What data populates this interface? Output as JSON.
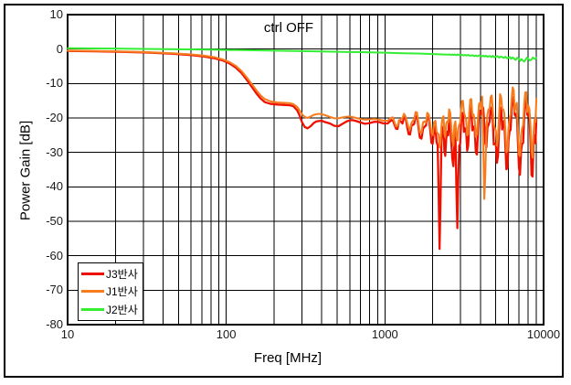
{
  "window": {
    "background": "#ffffff",
    "border_color": "#000000"
  },
  "chart_data": {
    "type": "line",
    "title": "ctrl OFF",
    "xlabel": "Freq [MHz]",
    "ylabel": "Power Gain [dB]",
    "x_scale": "log",
    "xlim": [
      10,
      10000
    ],
    "ylim": [
      -80,
      10
    ],
    "x_ticks": [
      10,
      100,
      1000,
      10000
    ],
    "y_ticks": [
      10,
      0,
      -10,
      -20,
      -30,
      -40,
      -50,
      -60,
      -70,
      -80
    ],
    "grid": "black major+minor vertical (log), major horizontal",
    "legend_position": "bottom-left-inside",
    "grid_color": "#000000",
    "series": [
      {
        "name": "J3반사",
        "color": "#ee1100",
        "width": 2.3,
        "jitter": {
          "start": 1080,
          "seed": 7,
          "amp": [
            [
              1080,
              1.2
            ],
            [
              2000,
              2.6
            ],
            [
              3000,
              3.4
            ],
            [
              5000,
              4.4
            ],
            [
              9000,
              5.2
            ]
          ]
        },
        "points": [
          [
            10,
            -0.55
          ],
          [
            15,
            -0.65
          ],
          [
            22,
            -0.8
          ],
          [
            32,
            -1.0
          ],
          [
            45,
            -1.35
          ],
          [
            60,
            -1.75
          ],
          [
            72,
            -2.15
          ],
          [
            85,
            -2.7
          ],
          [
            95,
            -3.3
          ],
          [
            105,
            -4.2
          ],
          [
            115,
            -5.4
          ],
          [
            125,
            -7.0
          ],
          [
            135,
            -9.0
          ],
          [
            145,
            -11.0
          ],
          [
            155,
            -12.9
          ],
          [
            165,
            -14.4
          ],
          [
            175,
            -15.4
          ],
          [
            190,
            -15.9
          ],
          [
            210,
            -16.1
          ],
          [
            230,
            -16.2
          ],
          [
            250,
            -16.3
          ],
          [
            265,
            -16.6
          ],
          [
            280,
            -17.8
          ],
          [
            290,
            -19.3
          ],
          [
            300,
            -21.2
          ],
          [
            312,
            -22.6
          ],
          [
            325,
            -23.0
          ],
          [
            340,
            -22.4
          ],
          [
            355,
            -21.5
          ],
          [
            370,
            -21.0
          ],
          [
            385,
            -20.9
          ],
          [
            400,
            -20.8
          ],
          [
            420,
            -21.2
          ],
          [
            450,
            -21.6
          ],
          [
            480,
            -22.3
          ],
          [
            510,
            -22.4
          ],
          [
            545,
            -21.6
          ],
          [
            580,
            -20.9
          ],
          [
            620,
            -20.6
          ],
          [
            660,
            -20.9
          ],
          [
            700,
            -21.3
          ],
          [
            750,
            -21.7
          ],
          [
            800,
            -21.5
          ],
          [
            860,
            -21.1
          ],
          [
            920,
            -21.2
          ],
          [
            980,
            -21.6
          ],
          [
            1040,
            -21.6
          ],
          [
            1100,
            -20.6
          ],
          [
            1150,
            -22.0
          ],
          [
            1200,
            -23.2
          ],
          [
            1260,
            -21.0
          ],
          [
            1320,
            -19.8
          ],
          [
            1380,
            -22.5
          ],
          [
            1440,
            -24.8
          ],
          [
            1500,
            -22.0
          ],
          [
            1560,
            -19.5
          ],
          [
            1620,
            -22.0
          ],
          [
            1700,
            -26.0
          ],
          [
            1780,
            -22.5
          ],
          [
            1850,
            -19.8
          ],
          [
            1930,
            -23.5
          ],
          [
            2000,
            -27.5
          ],
          [
            2080,
            -22.5
          ],
          [
            2150,
            -28.0
          ],
          [
            2210,
            -58.0
          ],
          [
            2270,
            -27.0
          ],
          [
            2340,
            -22.5
          ],
          [
            2400,
            -31.0
          ],
          [
            2470,
            -24.0
          ],
          [
            2540,
            -20.5
          ],
          [
            2620,
            -27.0
          ],
          [
            2700,
            -34.0
          ],
          [
            2780,
            -24.0
          ],
          [
            2860,
            -52.0
          ],
          [
            2940,
            -28.0
          ],
          [
            3020,
            -21.5
          ],
          [
            3100,
            -18.5
          ],
          [
            3200,
            -23.0
          ],
          [
            3300,
            -29.5
          ],
          [
            3400,
            -21.0
          ],
          [
            3500,
            -17.5
          ],
          [
            3620,
            -22.5
          ],
          [
            3740,
            -30.0
          ],
          [
            3860,
            -24.0
          ],
          [
            3980,
            -18.5
          ],
          [
            4100,
            -16.5
          ],
          [
            4230,
            -21.5
          ],
          [
            4360,
            -28.5
          ],
          [
            4500,
            -22.0
          ],
          [
            4640,
            -17.0
          ],
          [
            4780,
            -20.5
          ],
          [
            4930,
            -27.5
          ],
          [
            5080,
            -33.0
          ],
          [
            5240,
            -23.5
          ],
          [
            5400,
            -17.0
          ],
          [
            5570,
            -21.0
          ],
          [
            5740,
            -28.0
          ],
          [
            5920,
            -34.5
          ],
          [
            6100,
            -24.0
          ],
          [
            6290,
            -17.5
          ],
          [
            6480,
            -14.5
          ],
          [
            6680,
            -19.5
          ],
          [
            6890,
            -27.0
          ],
          [
            7100,
            -36.5
          ],
          [
            7320,
            -27.5
          ],
          [
            7550,
            -19.5
          ],
          [
            7780,
            -14.8
          ],
          [
            8020,
            -19.5
          ],
          [
            8270,
            -26.5
          ],
          [
            8520,
            -37.0
          ],
          [
            8780,
            -25.0
          ],
          [
            9000,
            -20.5
          ]
        ]
      },
      {
        "name": "J1반사",
        "color": "#f57d1f",
        "width": 2.1,
        "jitter": {
          "start": 1080,
          "seed": 13,
          "amp": [
            [
              1080,
              1.0
            ],
            [
              2000,
              2.2
            ],
            [
              3000,
              3.0
            ],
            [
              5000,
              3.8
            ],
            [
              9000,
              4.6
            ]
          ]
        },
        "points": [
          [
            10,
            -0.45
          ],
          [
            15,
            -0.55
          ],
          [
            22,
            -0.7
          ],
          [
            32,
            -0.9
          ],
          [
            45,
            -1.2
          ],
          [
            60,
            -1.55
          ],
          [
            72,
            -1.9
          ],
          [
            85,
            -2.4
          ],
          [
            95,
            -3.0
          ],
          [
            105,
            -3.8
          ],
          [
            115,
            -4.9
          ],
          [
            125,
            -6.4
          ],
          [
            135,
            -8.3
          ],
          [
            145,
            -10.2
          ],
          [
            155,
            -12.0
          ],
          [
            165,
            -13.5
          ],
          [
            175,
            -14.5
          ],
          [
            190,
            -15.2
          ],
          [
            210,
            -15.5
          ],
          [
            230,
            -15.6
          ],
          [
            250,
            -15.7
          ],
          [
            265,
            -16.0
          ],
          [
            280,
            -16.8
          ],
          [
            290,
            -17.8
          ],
          [
            300,
            -18.9
          ],
          [
            312,
            -19.7
          ],
          [
            325,
            -20.0
          ],
          [
            340,
            -19.6
          ],
          [
            355,
            -19.1
          ],
          [
            370,
            -18.9
          ],
          [
            385,
            -18.8
          ],
          [
            400,
            -18.9
          ],
          [
            420,
            -19.2
          ],
          [
            450,
            -19.7
          ],
          [
            480,
            -20.1
          ],
          [
            510,
            -20.1
          ],
          [
            545,
            -19.8
          ],
          [
            580,
            -19.6
          ],
          [
            620,
            -19.7
          ],
          [
            660,
            -20.0
          ],
          [
            700,
            -20.3
          ],
          [
            750,
            -20.5
          ],
          [
            800,
            -20.4
          ],
          [
            860,
            -20.3
          ],
          [
            920,
            -20.5
          ],
          [
            980,
            -20.8
          ],
          [
            1040,
            -20.8
          ],
          [
            1100,
            -19.9
          ],
          [
            1150,
            -21.3
          ],
          [
            1200,
            -22.3
          ],
          [
            1260,
            -20.3
          ],
          [
            1320,
            -18.8
          ],
          [
            1380,
            -21.3
          ],
          [
            1440,
            -23.3
          ],
          [
            1500,
            -20.8
          ],
          [
            1560,
            -18.3
          ],
          [
            1620,
            -20.8
          ],
          [
            1700,
            -24.3
          ],
          [
            1780,
            -21.0
          ],
          [
            1850,
            -18.5
          ],
          [
            1930,
            -21.8
          ],
          [
            2000,
            -25.0
          ],
          [
            2080,
            -20.8
          ],
          [
            2150,
            -24.5
          ],
          [
            2210,
            -28.5
          ],
          [
            2270,
            -22.5
          ],
          [
            2340,
            -19.5
          ],
          [
            2400,
            -25.5
          ],
          [
            2470,
            -21.0
          ],
          [
            2540,
            -17.5
          ],
          [
            2620,
            -22.5
          ],
          [
            2700,
            -28.0
          ],
          [
            2780,
            -21.0
          ],
          [
            2860,
            -26.5
          ],
          [
            2940,
            -22.0
          ],
          [
            3020,
            -17.5
          ],
          [
            3100,
            -15.0
          ],
          [
            3200,
            -19.5
          ],
          [
            3300,
            -25.0
          ],
          [
            3400,
            -18.5
          ],
          [
            3500,
            -14.5
          ],
          [
            3620,
            -19.0
          ],
          [
            3740,
            -25.5
          ],
          [
            3860,
            -20.0
          ],
          [
            3980,
            -15.5
          ],
          [
            4100,
            -13.8
          ],
          [
            4230,
            -43.5
          ],
          [
            4360,
            -23.5
          ],
          [
            4500,
            -17.5
          ],
          [
            4640,
            -14.0
          ],
          [
            4780,
            -17.5
          ],
          [
            4930,
            -23.0
          ],
          [
            5080,
            -28.0
          ],
          [
            5240,
            -19.5
          ],
          [
            5400,
            -14.0
          ],
          [
            5570,
            -17.5
          ],
          [
            5740,
            -23.5
          ],
          [
            5920,
            -29.5
          ],
          [
            6100,
            -20.0
          ],
          [
            6290,
            -14.5
          ],
          [
            6480,
            -12.0
          ],
          [
            6680,
            -16.5
          ],
          [
            6890,
            -23.0
          ],
          [
            7100,
            -31.0
          ],
          [
            7320,
            -23.0
          ],
          [
            7550,
            -16.0
          ],
          [
            7780,
            -12.5
          ],
          [
            8020,
            -16.5
          ],
          [
            8270,
            -22.5
          ],
          [
            8520,
            -31.5
          ],
          [
            8780,
            -20.5
          ],
          [
            9000,
            -14.5
          ]
        ]
      },
      {
        "name": "J2반사",
        "color": "#33ee33",
        "width": 2.0,
        "jitter": {
          "start": 2500,
          "seed": 21,
          "amp": [
            [
              2500,
              0.1
            ],
            [
              5000,
              0.25
            ],
            [
              7000,
              0.45
            ],
            [
              9000,
              0.5
            ]
          ]
        },
        "points": [
          [
            10,
            0.25
          ],
          [
            20,
            0.15
          ],
          [
            30,
            0.05
          ],
          [
            50,
            -0.05
          ],
          [
            80,
            -0.15
          ],
          [
            100,
            -0.25
          ],
          [
            150,
            -0.35
          ],
          [
            200,
            -0.45
          ],
          [
            300,
            -0.6
          ],
          [
            400,
            -0.7
          ],
          [
            500,
            -0.8
          ],
          [
            700,
            -0.9
          ],
          [
            1000,
            -1.05
          ],
          [
            1300,
            -1.2
          ],
          [
            1600,
            -1.3
          ],
          [
            2000,
            -1.45
          ],
          [
            2500,
            -1.6
          ],
          [
            3000,
            -1.7
          ],
          [
            3500,
            -1.85
          ],
          [
            4000,
            -2.0
          ],
          [
            4500,
            -2.1
          ],
          [
            5000,
            -2.2
          ],
          [
            5500,
            -2.35
          ],
          [
            6000,
            -2.5
          ],
          [
            6500,
            -2.7
          ],
          [
            7000,
            -2.9
          ],
          [
            7400,
            -3.3
          ],
          [
            7700,
            -3.1
          ],
          [
            8000,
            -2.8
          ],
          [
            8400,
            -3.0
          ],
          [
            8700,
            -2.7
          ],
          [
            9000,
            -2.6
          ]
        ]
      }
    ]
  }
}
